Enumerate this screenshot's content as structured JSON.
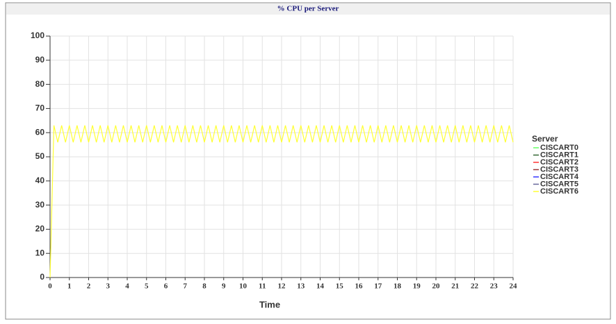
{
  "chart_data": {
    "type": "line",
    "title": "% CPU per Server",
    "x_label": "Time",
    "legend_title": "Server",
    "xlim": [
      0,
      24
    ],
    "xticks": [
      0,
      1,
      2,
      3,
      4,
      5,
      6,
      7,
      8,
      9,
      10,
      11,
      12,
      13,
      14,
      15,
      16,
      17,
      18,
      19,
      20,
      21,
      22,
      23,
      24
    ],
    "ylim": [
      0,
      100
    ],
    "yticks": [
      0,
      10,
      20,
      30,
      40,
      50,
      60,
      70,
      80,
      90,
      100
    ],
    "grid": true,
    "legend": "right",
    "series": [
      {
        "name": "CISCART0",
        "color": "#66ff66",
        "x": [],
        "values": []
      },
      {
        "name": "CISCART1",
        "color": "#336633",
        "x": [],
        "values": []
      },
      {
        "name": "CISCART2",
        "color": "#ff3333",
        "x": [],
        "values": []
      },
      {
        "name": "CISCART3",
        "color": "#993333",
        "x": [],
        "values": []
      },
      {
        "name": "CISCART4",
        "color": "#3333ff",
        "x": [],
        "values": []
      },
      {
        "name": "CISCART5",
        "color": "#666699",
        "x": [],
        "values": []
      },
      {
        "name": "CISCART6",
        "color": "#ffff33",
        "x": [
          0,
          0.2,
          0.4,
          0.6,
          0.8,
          1,
          1.2,
          1.4,
          1.6,
          1.8,
          2,
          2.2,
          2.4,
          2.6,
          2.8,
          3,
          3.2,
          3.4,
          3.6,
          3.8,
          4,
          4.2,
          4.4,
          4.6,
          4.8,
          5,
          5.2,
          5.4,
          5.6,
          5.8,
          6,
          6.2,
          6.4,
          6.6,
          6.8,
          7,
          7.2,
          7.4,
          7.6,
          7.8,
          8,
          8.2,
          8.4,
          8.6,
          8.8,
          9,
          9.2,
          9.4,
          9.6,
          9.8,
          10,
          10.2,
          10.4,
          10.6,
          10.8,
          11,
          11.2,
          11.4,
          11.6,
          11.8,
          12,
          12.2,
          12.4,
          12.6,
          12.8,
          13,
          13.2,
          13.4,
          13.6,
          13.8,
          14,
          14.2,
          14.4,
          14.6,
          14.8,
          15,
          15.2,
          15.4,
          15.6,
          15.8,
          16,
          16.2,
          16.4,
          16.6,
          16.8,
          17,
          17.2,
          17.4,
          17.6,
          17.8,
          18,
          18.2,
          18.4,
          18.6,
          18.8,
          19,
          19.2,
          19.4,
          19.6,
          19.8,
          20,
          20.2,
          20.4,
          20.6,
          20.8,
          21,
          21.2,
          21.4,
          21.6,
          21.8,
          22,
          22.2,
          22.4,
          22.6,
          22.8,
          23,
          23.2,
          23.4,
          23.6,
          23.8,
          24
        ],
        "values": [
          0,
          63,
          56,
          63,
          56,
          63,
          56,
          63,
          56,
          63,
          56,
          63,
          56,
          63,
          56,
          63,
          56,
          63,
          56,
          63,
          56,
          63,
          56,
          63,
          56,
          63,
          56,
          63,
          56,
          63,
          56,
          63,
          56,
          63,
          56,
          63,
          56,
          63,
          56,
          63,
          56,
          63,
          56,
          63,
          56,
          63,
          56,
          63,
          56,
          63,
          56,
          63,
          56,
          63,
          56,
          63,
          56,
          63,
          56,
          63,
          56,
          63,
          56,
          63,
          56,
          63,
          56,
          63,
          56,
          63,
          56,
          63,
          56,
          63,
          56,
          63,
          56,
          63,
          56,
          63,
          56,
          63,
          56,
          63,
          56,
          63,
          56,
          63,
          56,
          63,
          56,
          63,
          56,
          63,
          56,
          63,
          56,
          63,
          56,
          63,
          56,
          63,
          56,
          63,
          56,
          63,
          56,
          63,
          56,
          63,
          56,
          63,
          56,
          63,
          56,
          63,
          56,
          63,
          56,
          63,
          56
        ]
      }
    ]
  }
}
